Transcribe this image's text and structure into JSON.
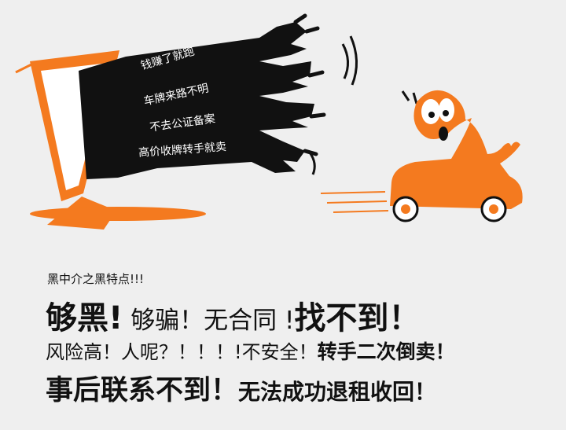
{
  "illustration": {
    "hand_labels": [
      "钱赚了就跑",
      "车牌来路不明",
      "不去公证备案",
      "高价收牌转手就卖"
    ],
    "colors": {
      "accent": "#f47a1f",
      "ink": "#111111"
    },
    "icons": [
      "computer-monitor",
      "grabbing-hands",
      "fleeing-car"
    ]
  },
  "caption": {
    "subtitle": "黑中介之黑特点!!!",
    "line1": {
      "p1": "够黑!",
      "p2": " 够骗！无合同 !",
      "p3": "找不到！"
    },
    "line2": {
      "p1": "风险高！人呢？！！！!不安全！",
      "p2": "转手二次倒卖！"
    },
    "line3": {
      "p1": "事后联系不到！",
      "p2": "无法成功退租收回！"
    }
  }
}
